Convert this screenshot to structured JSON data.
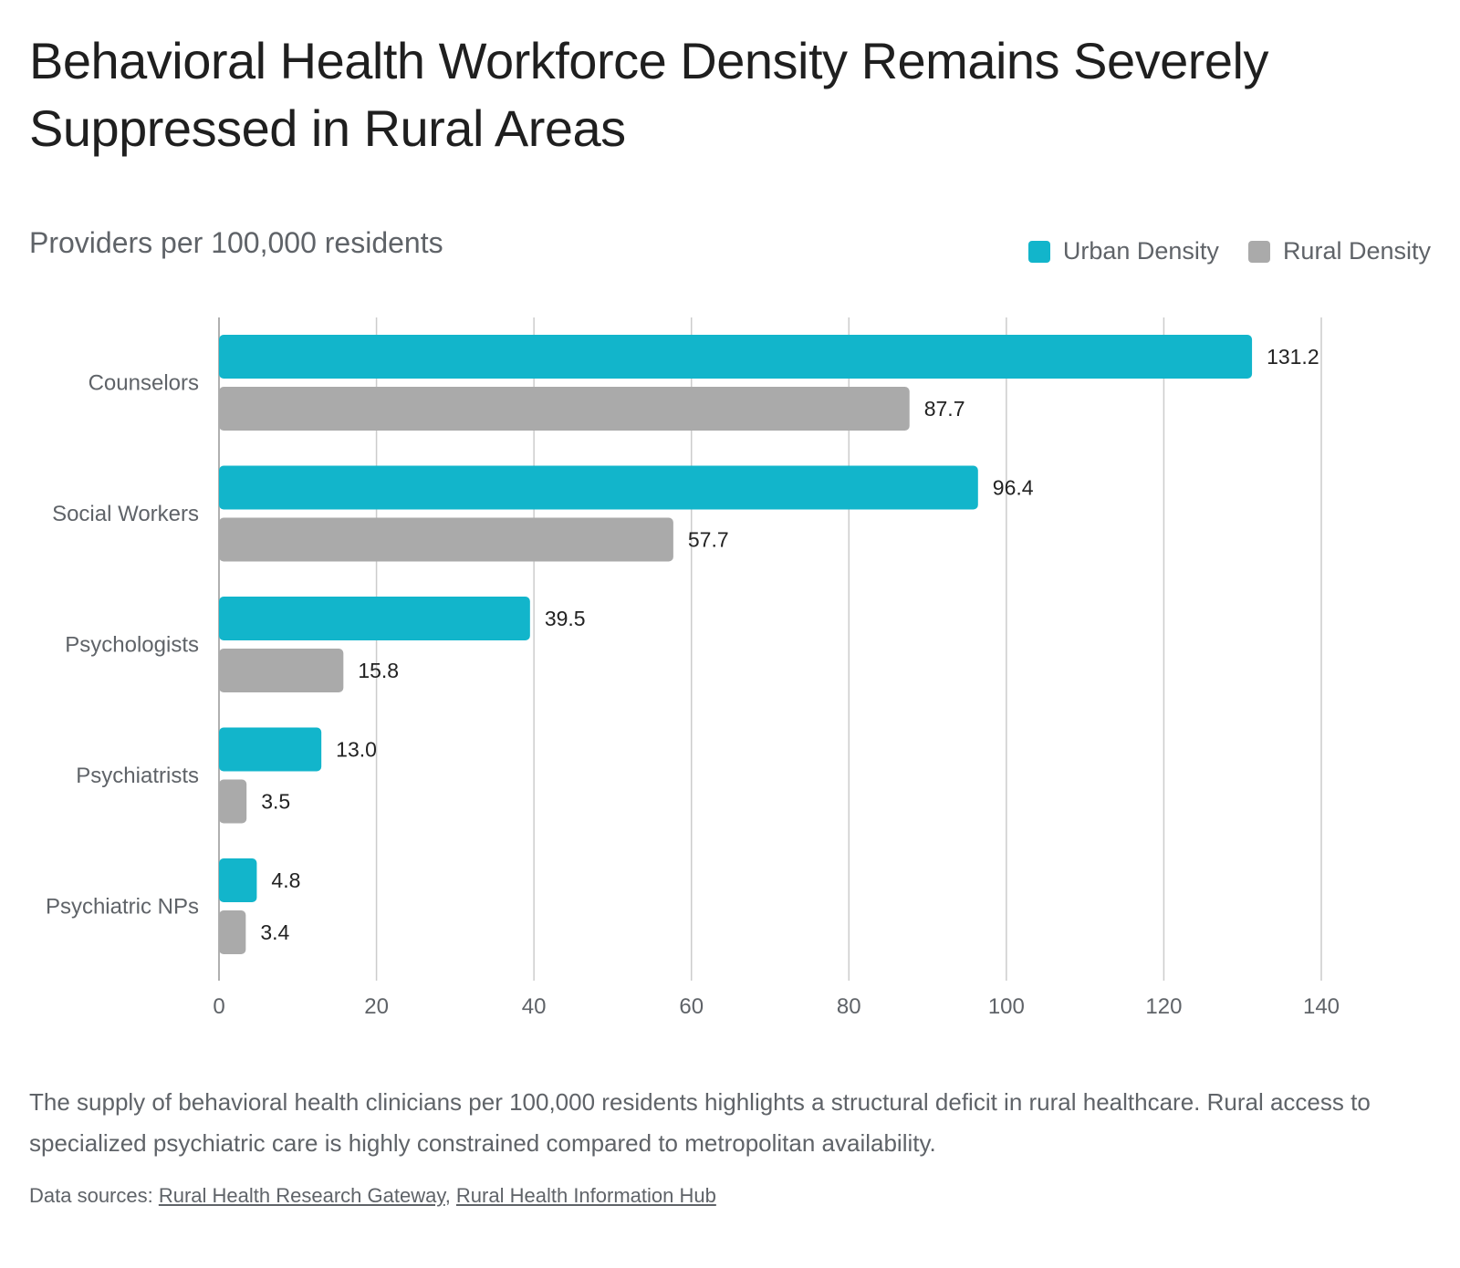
{
  "header": {
    "title": "Behavioral Health Workforce Density Remains Severely Suppressed in Rural Areas",
    "subtitle": "Providers per 100,000 residents"
  },
  "legend": {
    "items": [
      {
        "label": "Urban Density",
        "color": "#12b5cb"
      },
      {
        "label": "Rural Density",
        "color": "#aaaaaa"
      }
    ]
  },
  "chart_data": {
    "type": "bar",
    "orientation": "horizontal",
    "title": "Behavioral Health Workforce Density Remains Severely Suppressed in Rural Areas",
    "subtitle": "Providers per 100,000 residents",
    "categories": [
      "Counselors",
      "Social Workers",
      "Psychologists",
      "Psychiatrists",
      "Psychiatric NPs"
    ],
    "series": [
      {
        "name": "Urban Density",
        "color": "#12b5cb",
        "values": [
          131.2,
          96.4,
          39.5,
          13.0,
          4.8
        ]
      },
      {
        "name": "Rural Density",
        "color": "#aaaaaa",
        "values": [
          87.7,
          57.7,
          15.8,
          3.5,
          3.4
        ]
      }
    ],
    "xlim": [
      0,
      140
    ],
    "xticks": [
      0,
      20,
      40,
      60,
      80,
      100,
      120,
      140
    ],
    "grid": "vertical",
    "legend_position": "top-right",
    "data_labels": true
  },
  "footer": {
    "description": "The supply of behavioral health clinicians per 100,000 residents highlights a structural deficit in rural healthcare. Rural access to specialized psychiatric care is highly constrained compared to metropolitan availability.",
    "sources_prefix": "Data sources: ",
    "sources_separator": ", ",
    "sources": [
      "Rural Health Research Gateway",
      "Rural Health Information Hub"
    ]
  }
}
